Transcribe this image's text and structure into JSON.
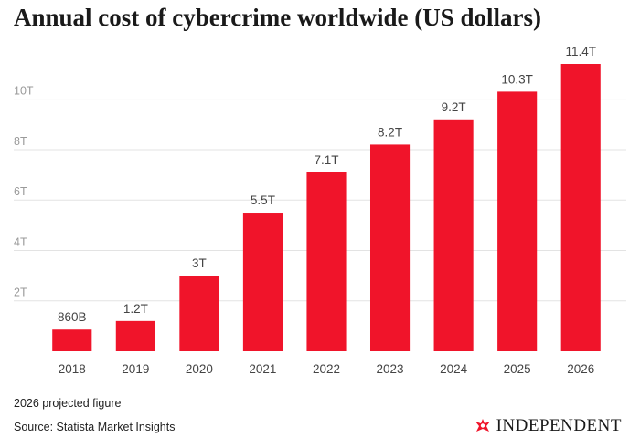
{
  "title": "Annual cost of cybercrime worldwide (US dollars)",
  "footnote": "2026 projected figure",
  "source": "Source: Statista Market Insights",
  "brand": {
    "name": "INDEPENDENT",
    "icon": "eagle-icon"
  },
  "colors": {
    "bar": "#f0142a",
    "grid": "#e3e3e3",
    "axis_text": "#9a9a9a",
    "label_text": "#444444"
  },
  "chart_data": {
    "type": "bar",
    "title": "Annual cost of cybercrime worldwide (US dollars)",
    "xlabel": "",
    "ylabel": "",
    "categories": [
      "2018",
      "2019",
      "2020",
      "2021",
      "2022",
      "2023",
      "2024",
      "2025",
      "2026"
    ],
    "values": [
      0.86,
      1.2,
      3,
      5.5,
      7.1,
      8.2,
      9.2,
      10.3,
      11.4
    ],
    "data_labels": [
      "860B",
      "1.2T",
      "3T",
      "5.5T",
      "7.1T",
      "8.2T",
      "9.2T",
      "10.3T",
      "11.4T"
    ],
    "yticks": [
      2,
      4,
      6,
      8,
      10
    ],
    "ytick_labels": [
      "2T",
      "4T",
      "6T",
      "8T",
      "10T"
    ],
    "ylim": [
      0,
      11.4
    ],
    "grid": true,
    "legend": "none"
  }
}
